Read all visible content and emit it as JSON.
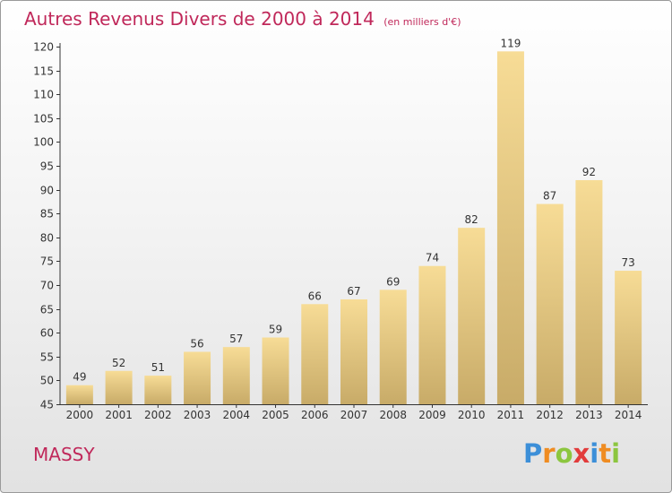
{
  "title": "Autres Revenus Divers de 2000 à 2014",
  "unit_note": "(en milliers d'€)",
  "city": "MASSY",
  "logo": {
    "text": "Proxiti",
    "letters": [
      {
        "ch": "P",
        "color": "#3c8fd8"
      },
      {
        "ch": "r",
        "color": "#ef8c22"
      },
      {
        "ch": "o",
        "color": "#8cc63f"
      },
      {
        "ch": "x",
        "color": "#e23c3c"
      },
      {
        "ch": "i",
        "color": "#3c8fd8"
      },
      {
        "ch": "t",
        "color": "#ef8c22"
      },
      {
        "ch": "i",
        "color": "#8cc63f"
      }
    ]
  },
  "colors": {
    "title": "#c0285a",
    "bar_light": "#f7dc96",
    "bar_dark": "#c8ab68"
  },
  "chart_data": {
    "type": "bar",
    "categories": [
      "2000",
      "2001",
      "2002",
      "2003",
      "2004",
      "2005",
      "2006",
      "2007",
      "2008",
      "2009",
      "2010",
      "2011",
      "2012",
      "2013",
      "2014"
    ],
    "values": [
      49,
      52,
      51,
      56,
      57,
      59,
      66,
      67,
      69,
      74,
      82,
      119,
      87,
      92,
      73
    ],
    "ylim": [
      45,
      120
    ],
    "yticks": [
      45,
      50,
      55,
      60,
      65,
      70,
      75,
      80,
      85,
      90,
      95,
      100,
      105,
      110,
      115,
      120
    ],
    "grid": false,
    "legend": "none"
  }
}
